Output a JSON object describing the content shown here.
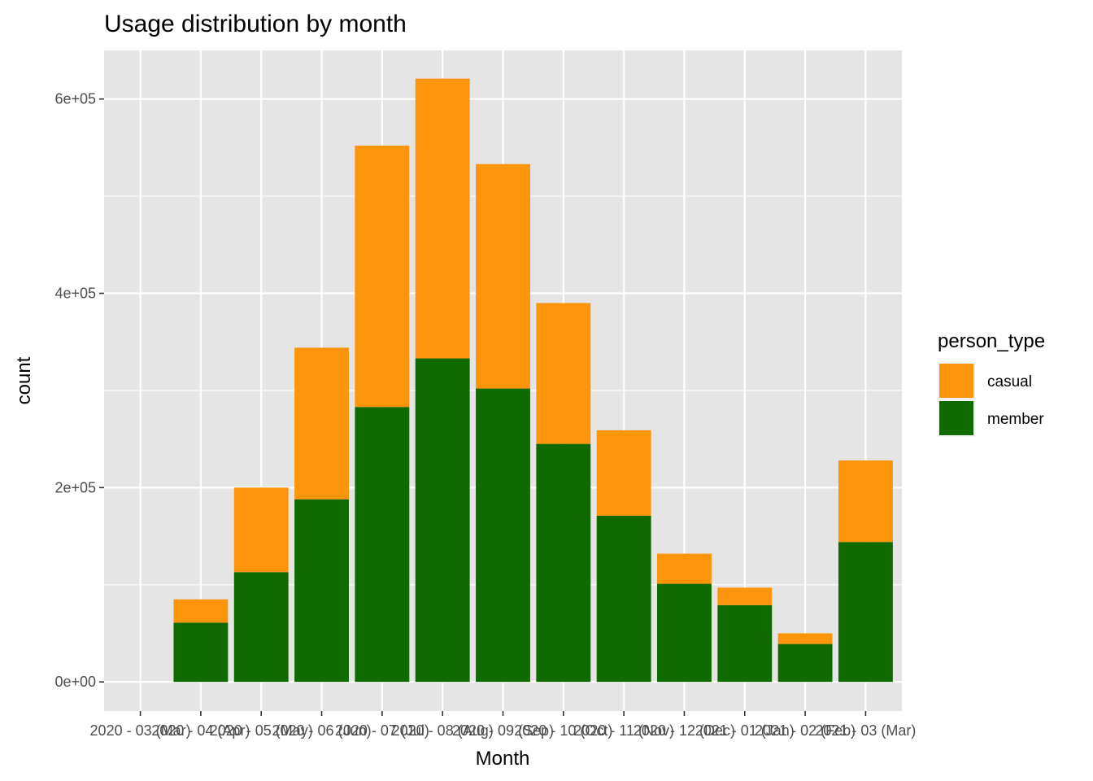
{
  "chart_data": {
    "type": "bar",
    "stacked": true,
    "title": "Usage distribution by month",
    "xlabel": "Month",
    "ylabel": "count",
    "categories": [
      "2020 - 03 (Mar)",
      "2020 - 04 (Apr)",
      "2020 - 05 (May)",
      "2020 - 06 (Jun)",
      "2020 - 07 (Jul)",
      "2020 - 08 (Aug)",
      "2020 - 09 (Sep)",
      "2020 - 10 (Oct)",
      "2020 - 11 (Nov)",
      "2020 - 12 (Dec)",
      "2021 - 01 (Jan)",
      "2021 - 02 (Feb)",
      "2021 - 03 (Mar)"
    ],
    "series": [
      {
        "name": "member",
        "color": "#0f6b00",
        "values": [
          0,
          61000,
          113000,
          188000,
          283000,
          333000,
          302000,
          245000,
          171000,
          101000,
          79000,
          39000,
          144000
        ]
      },
      {
        "name": "casual",
        "color": "#fc950b",
        "values": [
          0,
          24000,
          87000,
          156000,
          269000,
          288000,
          231000,
          145000,
          88000,
          31000,
          18000,
          11000,
          84000
        ]
      }
    ],
    "y_ticks": [
      {
        "value": 0,
        "label": "0e+00"
      },
      {
        "value": 200000,
        "label": "2e+05"
      },
      {
        "value": 400000,
        "label": "4e+05"
      },
      {
        "value": 600000,
        "label": "6e+05"
      }
    ],
    "ylim": [
      -30000,
      650000
    ],
    "legend": {
      "title": "person_type",
      "entries": [
        {
          "label": "casual",
          "color": "#fc950b"
        },
        {
          "label": "member",
          "color": "#0f6b00"
        }
      ],
      "placement": "right"
    },
    "grid": true,
    "panel_background": "#e5e5e5",
    "grid_color": "#ffffff"
  }
}
